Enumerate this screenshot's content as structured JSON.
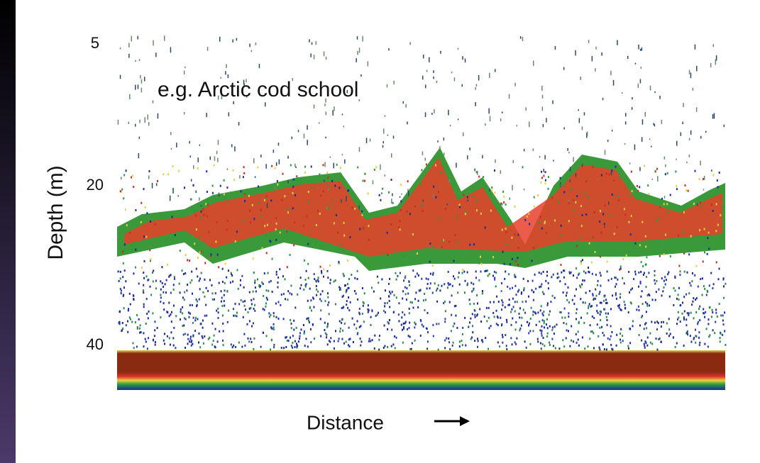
{
  "slide": {
    "annotation": "e.g. Arctic cod school",
    "y_axis": {
      "label": "Depth (m)",
      "ticks": [
        5,
        20,
        40
      ]
    },
    "x_axis": {
      "label": "Distance"
    }
  }
}
